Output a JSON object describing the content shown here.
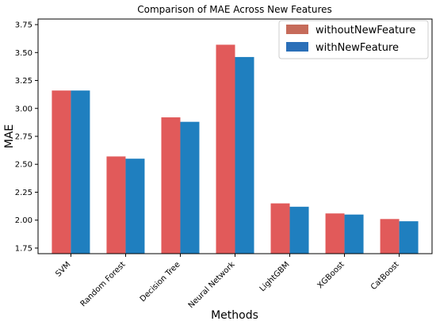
{
  "chart_data": {
    "type": "bar",
    "title": "Comparison of MAE Across New Features",
    "xlabel": "Methods",
    "ylabel": "MAE",
    "categories": [
      "SVM",
      "Random Forest",
      "Decision Tree",
      "Neural Network",
      "LightGBM",
      "XGBoost",
      "CatBoost"
    ],
    "series": [
      {
        "name": "withoutNewFeature",
        "color": "#e15a5a",
        "legend_color": "#c66b5a",
        "values": [
          3.16,
          2.57,
          2.92,
          3.57,
          2.15,
          2.06,
          2.01
        ]
      },
      {
        "name": "withNewFeature",
        "color": "#1f7fbf",
        "legend_color": "#2a6fb8",
        "values": [
          3.16,
          2.55,
          2.88,
          3.46,
          2.12,
          2.05,
          1.99
        ]
      }
    ],
    "ylim": [
      1.7,
      3.8
    ],
    "yticks": [
      "1.75",
      "2.00",
      "2.25",
      "2.50",
      "2.75",
      "3.00",
      "3.25",
      "3.50",
      "3.75"
    ],
    "legend_position": "top-right",
    "grid": false
  }
}
